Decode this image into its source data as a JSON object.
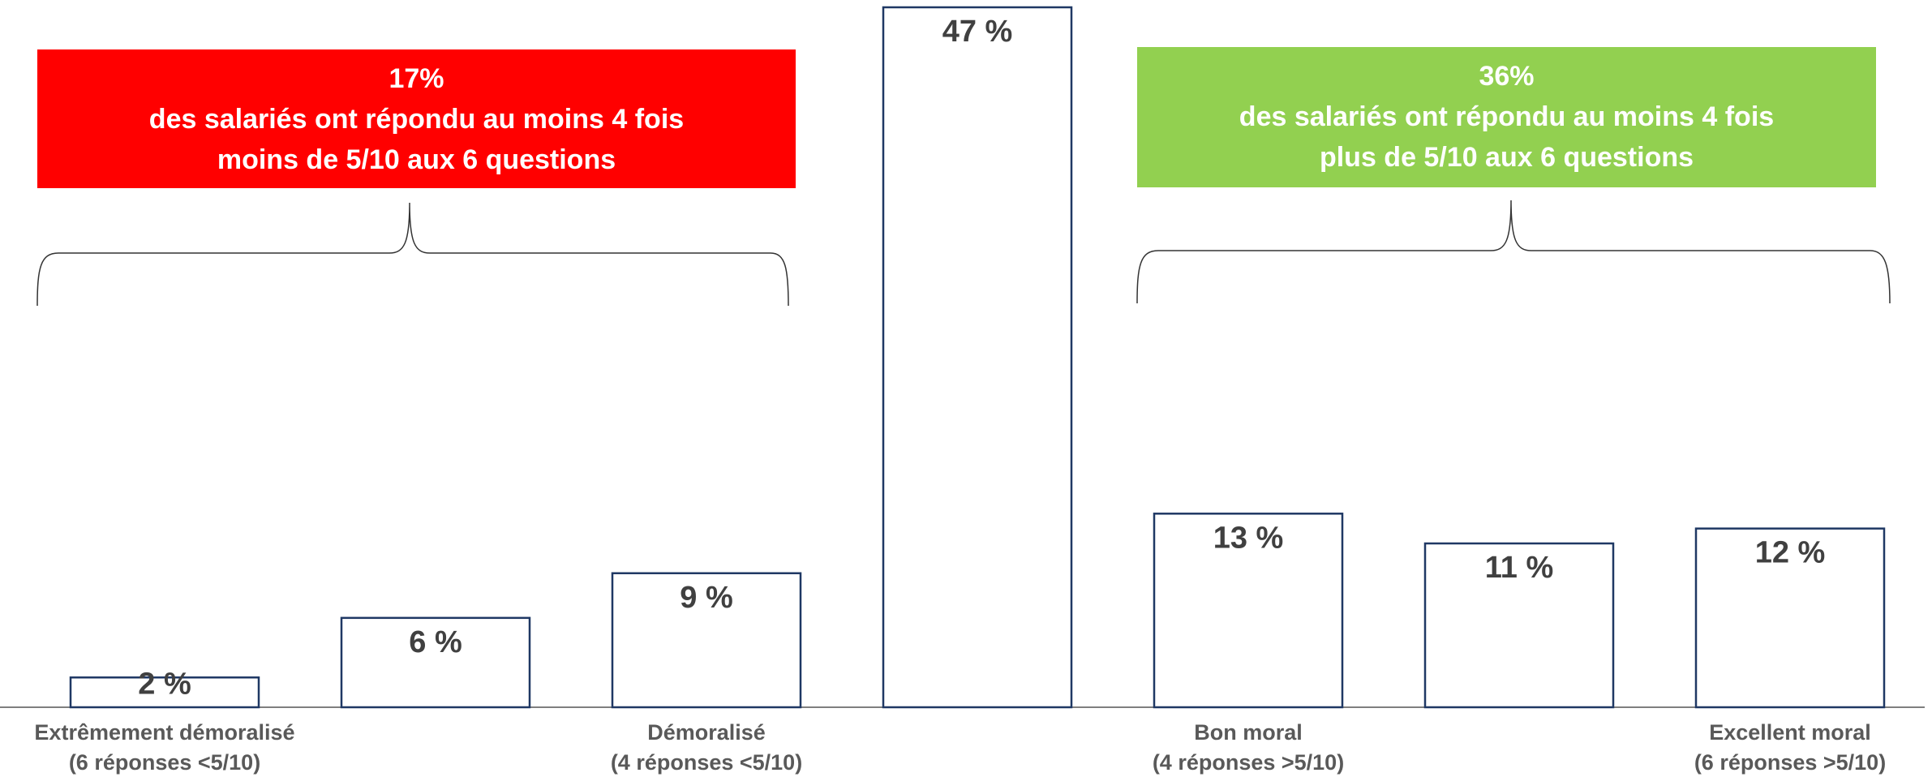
{
  "chart_data": {
    "type": "bar",
    "categories": [
      "Extrêmement démoralisé\n(6 réponses <5/10)",
      null,
      "Démoralisé\n(4 réponses <5/10)",
      null,
      "Bon moral\n(4 réponses >5/10)",
      null,
      "Excellent moral\n(6 réponses >5/10)"
    ],
    "values": [
      2,
      6,
      9,
      47,
      13,
      11,
      12
    ],
    "value_labels": [
      "2 %",
      "6 %",
      "9 %",
      "47 %",
      "13 %",
      "11 %",
      "12 %"
    ],
    "color": "#1f3864",
    "ylim": [
      0,
      47
    ],
    "annotations": [
      {
        "lines": [
          "17%",
          "des salariés ont répondu au moins 4 fois",
          "moins de 5/10 aux 6 questions"
        ],
        "color": "#ff0000"
      },
      {
        "lines": [
          "36%",
          "des salariés ont répondu au moins 4 fois",
          "plus de 5/10 aux 6 questions"
        ],
        "color": "#92d050"
      }
    ]
  }
}
